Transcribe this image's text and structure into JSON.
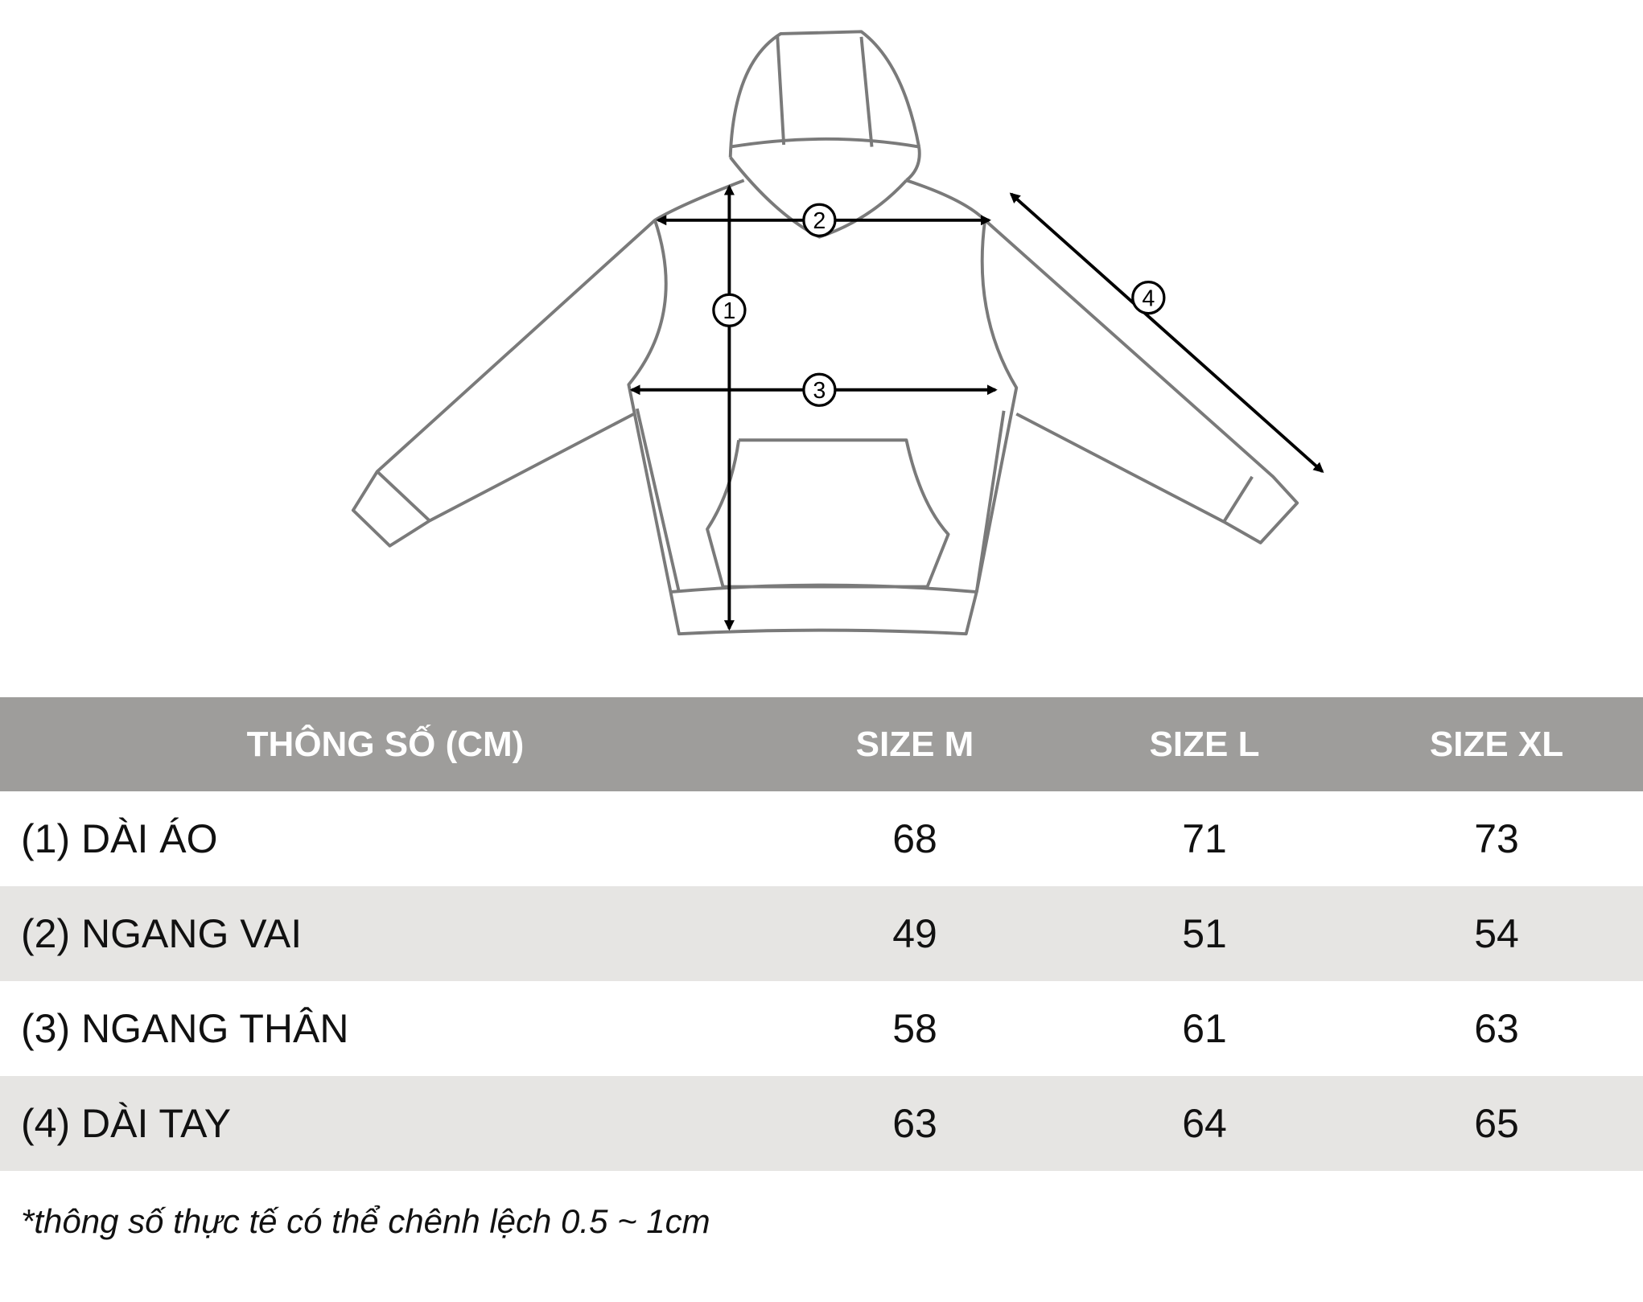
{
  "diagram": {
    "markers": [
      "1",
      "2",
      "3",
      "4"
    ],
    "outline_color": "#7a7a7a"
  },
  "table": {
    "headers": [
      "THÔNG SỐ (CM)",
      "SIZE M",
      "SIZE L",
      "SIZE XL"
    ],
    "rows": [
      {
        "label": "(1) DÀI ÁO",
        "values": [
          "68",
          "71",
          "73"
        ]
      },
      {
        "label": "(2) NGANG VAI",
        "values": [
          "49",
          "51",
          "54"
        ]
      },
      {
        "label": "(3) NGANG THÂN",
        "values": [
          "58",
          "61",
          "63"
        ]
      },
      {
        "label": "(4) DÀI TAY",
        "values": [
          "63",
          "64",
          "65"
        ]
      }
    ],
    "header_color": "#9e9d9b",
    "alt_row_color": "#e6e5e3"
  },
  "footnote": "*thông số thực tế có thể chênh lệch 0.5 ~ 1cm"
}
